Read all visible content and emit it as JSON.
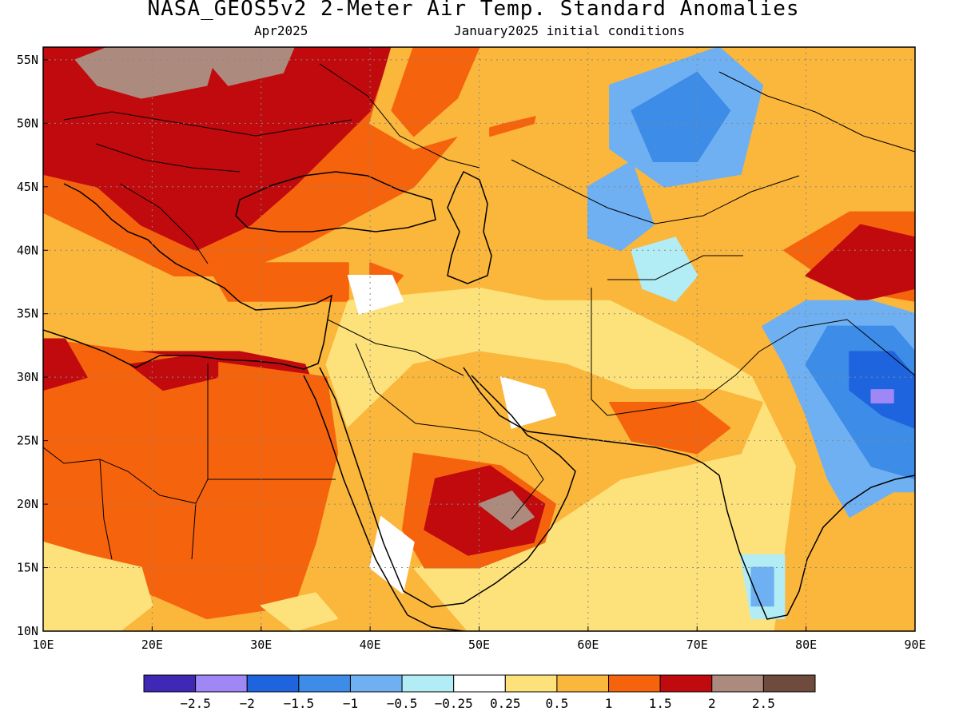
{
  "title": "NASA_GEOS5v2 2-Meter Air Temp. Standard Anomalies",
  "forecast_month": "Apr2025",
  "initial_conditions": "January2025 initial conditions",
  "map": {
    "lon_range": [
      10,
      90
    ],
    "lat_range": [
      10,
      56
    ],
    "x_ticks": [
      "10E",
      "20E",
      "30E",
      "40E",
      "50E",
      "60E",
      "70E",
      "80E",
      "90E"
    ],
    "y_ticks": [
      "55N",
      "50N",
      "45N",
      "40N",
      "35N",
      "30N",
      "25N",
      "20N",
      "15N",
      "10N"
    ],
    "grid_lines": "dotted"
  },
  "colorbar": {
    "colors": [
      "#3e28b5",
      "#9f87f5",
      "#1f64df",
      "#3c8ce8",
      "#6fb0f2",
      "#b2ecf5",
      "#ffffff",
      "#fde27c",
      "#fbb63c",
      "#f6630d",
      "#c00a0e",
      "#ad8a7e",
      "#6e4b3c"
    ],
    "labels": [
      "−2.5",
      "−2",
      "−1.5",
      "−1",
      "−0.5",
      "−0.25",
      "0.25",
      "0.5",
      "1",
      "1.5",
      "2",
      "2.5"
    ]
  },
  "regions": [
    {
      "lvl": 8,
      "pts": [
        [
          10,
          56
        ],
        [
          90,
          56
        ],
        [
          90,
          10
        ],
        [
          10,
          10
        ]
      ]
    },
    {
      "lvl": 9,
      "pts": [
        [
          10,
          56
        ],
        [
          50,
          56
        ],
        [
          49,
          50
        ],
        [
          44,
          45
        ],
        [
          33,
          40
        ],
        [
          27,
          38
        ],
        [
          22,
          38
        ],
        [
          10,
          43
        ]
      ]
    },
    {
      "lvl": 10,
      "pts": [
        [
          10,
          56
        ],
        [
          42,
          56
        ],
        [
          40,
          51
        ],
        [
          33,
          45
        ],
        [
          29,
          42
        ],
        [
          24,
          40
        ],
        [
          19,
          42
        ],
        [
          15,
          45
        ],
        [
          10,
          46
        ]
      ]
    },
    {
      "lvl": 11,
      "pts": [
        [
          13,
          55
        ],
        [
          16,
          56
        ],
        [
          26,
          56
        ],
        [
          25,
          53
        ],
        [
          19,
          52
        ],
        [
          15,
          53
        ]
      ]
    },
    {
      "lvl": 11,
      "pts": [
        [
          24,
          56
        ],
        [
          33,
          56
        ],
        [
          32,
          54
        ],
        [
          27,
          53
        ]
      ]
    },
    {
      "lvl": 9,
      "pts": [
        [
          51,
          55
        ],
        [
          56,
          54
        ],
        [
          55,
          50
        ],
        [
          51,
          49
        ]
      ]
    },
    {
      "lvl": 9,
      "pts": [
        [
          25,
          39
        ],
        [
          38,
          39
        ],
        [
          38,
          36
        ],
        [
          27,
          36
        ]
      ]
    },
    {
      "lvl": 9,
      "pts": [
        [
          40,
          39
        ],
        [
          43,
          38
        ],
        [
          42,
          37
        ],
        [
          40,
          37
        ]
      ]
    },
    {
      "lvl": 10,
      "pts": [
        [
          10,
          33
        ],
        [
          16,
          32
        ],
        [
          28,
          32
        ],
        [
          34,
          31
        ],
        [
          35,
          29
        ],
        [
          35,
          28
        ],
        [
          10,
          28
        ]
      ]
    },
    {
      "lvl": 9,
      "pts": [
        [
          10,
          33
        ],
        [
          36,
          30
        ],
        [
          37,
          24
        ],
        [
          35,
          17
        ],
        [
          33,
          12
        ],
        [
          25,
          11
        ],
        [
          17,
          14
        ],
        [
          10,
          17
        ]
      ]
    },
    {
      "lvl": 10,
      "pts": [
        [
          10,
          33
        ],
        [
          12,
          33
        ],
        [
          14,
          30
        ],
        [
          10,
          29
        ]
      ]
    },
    {
      "lvl": 10,
      "pts": [
        [
          18,
          31
        ],
        [
          26,
          32
        ],
        [
          26,
          30
        ],
        [
          21,
          29
        ]
      ]
    },
    {
      "lvl": 7,
      "pts": [
        [
          10,
          17
        ],
        [
          14,
          16
        ],
        [
          19,
          15
        ],
        [
          20,
          12
        ],
        [
          17,
          10
        ],
        [
          10,
          10
        ]
      ]
    },
    {
      "lvl": 7,
      "pts": [
        [
          30,
          12
        ],
        [
          35,
          13
        ],
        [
          37,
          11
        ],
        [
          33,
          10
        ]
      ]
    },
    {
      "lvl": 7,
      "pts": [
        [
          38,
          36
        ],
        [
          50,
          37
        ],
        [
          56,
          36
        ],
        [
          62,
          36
        ],
        [
          69,
          33
        ],
        [
          75,
          30
        ],
        [
          79,
          23
        ],
        [
          77,
          10
        ],
        [
          49,
          10
        ],
        [
          43,
          16
        ],
        [
          42,
          21
        ],
        [
          38,
          26
        ],
        [
          36,
          31
        ]
      ]
    },
    {
      "lvl": 8,
      "pts": [
        [
          44,
          31
        ],
        [
          50,
          32
        ],
        [
          58,
          31
        ],
        [
          64,
          29
        ],
        [
          72,
          29
        ],
        [
          76,
          28
        ],
        [
          74,
          24
        ],
        [
          63,
          22
        ],
        [
          56,
          18
        ],
        [
          44,
          15
        ],
        [
          40,
          20
        ],
        [
          38,
          26
        ]
      ]
    },
    {
      "lvl": 9,
      "pts": [
        [
          44,
          24
        ],
        [
          52,
          23
        ],
        [
          57,
          20
        ],
        [
          56,
          17
        ],
        [
          50,
          15
        ],
        [
          45,
          15
        ],
        [
          43,
          18
        ]
      ]
    },
    {
      "lvl": 10,
      "pts": [
        [
          46,
          22
        ],
        [
          51,
          23
        ],
        [
          56,
          20
        ],
        [
          55,
          17
        ],
        [
          49,
          16
        ],
        [
          45,
          18
        ]
      ]
    },
    {
      "lvl": 11,
      "pts": [
        [
          50,
          20
        ],
        [
          53,
          21
        ],
        [
          55,
          19
        ],
        [
          53,
          18
        ]
      ]
    },
    {
      "lvl": 9,
      "pts": [
        [
          62,
          28
        ],
        [
          70,
          28
        ],
        [
          73,
          26
        ],
        [
          70,
          24
        ],
        [
          64,
          25
        ]
      ]
    },
    {
      "lvl": 6,
      "pts": [
        [
          41,
          19
        ],
        [
          44,
          17
        ],
        [
          43,
          13
        ],
        [
          40,
          15
        ]
      ]
    },
    {
      "lvl": 6,
      "pts": [
        [
          52,
          30
        ],
        [
          56,
          29
        ],
        [
          57,
          27
        ],
        [
          53,
          26
        ]
      ]
    },
    {
      "lvl": 6,
      "pts": [
        [
          38,
          38
        ],
        [
          42,
          38
        ],
        [
          43,
          36
        ],
        [
          39,
          35
        ]
      ]
    },
    {
      "lvl": 8,
      "pts": [
        [
          42,
          56
        ],
        [
          58,
          56
        ],
        [
          66,
          55
        ],
        [
          62,
          52
        ],
        [
          52,
          50
        ],
        [
          44,
          48
        ],
        [
          40,
          50
        ]
      ]
    },
    {
      "lvl": 9,
      "pts": [
        [
          44,
          56
        ],
        [
          50,
          56
        ],
        [
          48,
          52
        ],
        [
          44,
          49
        ],
        [
          42,
          51
        ]
      ]
    },
    {
      "lvl": 4,
      "pts": [
        [
          62,
          53
        ],
        [
          72,
          56
        ],
        [
          76,
          53
        ],
        [
          74,
          46
        ],
        [
          67,
          45
        ],
        [
          62,
          48
        ]
      ]
    },
    {
      "lvl": 3,
      "pts": [
        [
          64,
          51
        ],
        [
          70,
          54
        ],
        [
          73,
          51
        ],
        [
          70,
          47
        ],
        [
          66,
          47
        ]
      ]
    },
    {
      "lvl": 4,
      "pts": [
        [
          60,
          45
        ],
        [
          64,
          47
        ],
        [
          66,
          42
        ],
        [
          63,
          40
        ],
        [
          60,
          41
        ]
      ]
    },
    {
      "lvl": 5,
      "pts": [
        [
          64,
          40
        ],
        [
          68,
          41
        ],
        [
          70,
          38
        ],
        [
          68,
          36
        ],
        [
          65,
          37
        ]
      ]
    },
    {
      "lvl": 8,
      "pts": [
        [
          77,
          56
        ],
        [
          90,
          56
        ],
        [
          90,
          49
        ],
        [
          86,
          47
        ],
        [
          81,
          50
        ]
      ]
    },
    {
      "lvl": 8,
      "pts": [
        [
          74,
          41
        ],
        [
          82,
          45
        ],
        [
          90,
          45
        ],
        [
          90,
          35
        ],
        [
          82,
          35
        ],
        [
          76,
          38
        ]
      ]
    },
    {
      "lvl": 9,
      "pts": [
        [
          78,
          40
        ],
        [
          84,
          43
        ],
        [
          90,
          43
        ],
        [
          90,
          36
        ],
        [
          83,
          37
        ]
      ]
    },
    {
      "lvl": 10,
      "pts": [
        [
          80,
          38
        ],
        [
          85,
          42
        ],
        [
          90,
          41
        ],
        [
          90,
          37
        ],
        [
          85,
          36
        ]
      ]
    },
    {
      "lvl": 4,
      "pts": [
        [
          80,
          36
        ],
        [
          86,
          36
        ],
        [
          90,
          35
        ],
        [
          90,
          21
        ],
        [
          88,
          21
        ],
        [
          84,
          19
        ],
        [
          82,
          22
        ],
        [
          80,
          27
        ],
        [
          78,
          31
        ],
        [
          76,
          34
        ]
      ]
    },
    {
      "lvl": 3,
      "pts": [
        [
          82,
          34
        ],
        [
          88,
          34
        ],
        [
          90,
          32
        ],
        [
          90,
          22
        ],
        [
          86,
          23
        ],
        [
          83,
          27
        ],
        [
          80,
          31
        ]
      ]
    },
    {
      "lvl": 2,
      "pts": [
        [
          84,
          32
        ],
        [
          88,
          32
        ],
        [
          90,
          30
        ],
        [
          90,
          26
        ],
        [
          87,
          27
        ],
        [
          84,
          29
        ]
      ]
    },
    {
      "lvl": 1,
      "pts": [
        [
          86,
          29
        ],
        [
          88,
          29
        ],
        [
          88,
          28
        ],
        [
          86,
          28
        ]
      ]
    },
    {
      "lvl": 5,
      "pts": [
        [
          74,
          16
        ],
        [
          78,
          16
        ],
        [
          78,
          11
        ],
        [
          75,
          11
        ]
      ]
    },
    {
      "lvl": 4,
      "pts": [
        [
          75,
          15
        ],
        [
          77,
          15
        ],
        [
          77,
          12
        ],
        [
          75,
          12
        ]
      ]
    }
  ]
}
